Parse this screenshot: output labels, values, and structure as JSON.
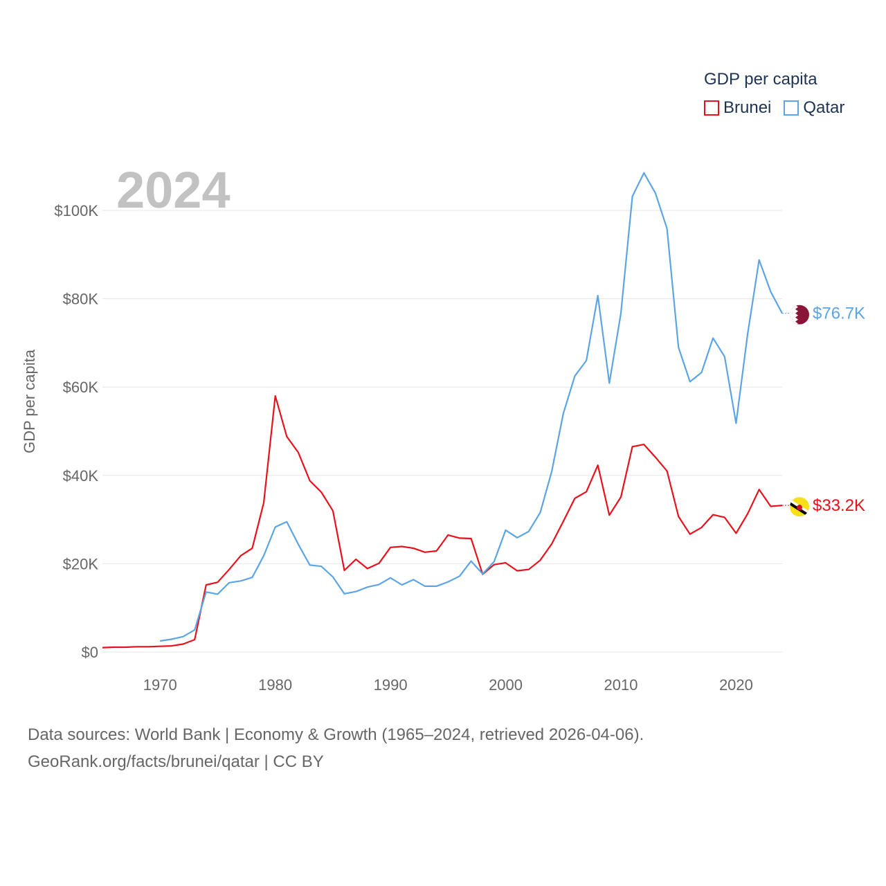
{
  "legend": {
    "title": "GDP per capita",
    "items": [
      {
        "label": "Brunei",
        "color": "#e8111b"
      },
      {
        "label": "Qatar",
        "color": "#5ba4e6"
      }
    ]
  },
  "footer": {
    "line1": "Data sources: World Bank | Economy & Growth (1965–2024, retrieved 2026-04-06).",
    "line2": "GeoRank.org/facts/brunei/qatar | CC BY"
  },
  "chart_data": {
    "type": "line",
    "title": "GDP per capita",
    "year_label": "2024",
    "ylabel": "GDP per capita",
    "xlabel": "",
    "xlim": [
      1965,
      2024
    ],
    "ylim": [
      0,
      100000
    ],
    "x_ticks": [
      1970,
      1980,
      1990,
      2000,
      2010,
      2020
    ],
    "y_ticks": [
      {
        "value": 0,
        "label": "$0"
      },
      {
        "value": 20000,
        "label": "$20K"
      },
      {
        "value": 40000,
        "label": "$40K"
      },
      {
        "value": 60000,
        "label": "$60K"
      },
      {
        "value": 80000,
        "label": "$80K"
      },
      {
        "value": 100000,
        "label": "$100K"
      }
    ],
    "grid": true,
    "series": [
      {
        "name": "Brunei",
        "color": "#e8111b",
        "end_label": "$33.2K",
        "flag": "brunei-flag",
        "x": [
          1965,
          1966,
          1967,
          1968,
          1969,
          1970,
          1971,
          1972,
          1973,
          1974,
          1975,
          1976,
          1977,
          1978,
          1979,
          1980,
          1981,
          1982,
          1983,
          1984,
          1985,
          1986,
          1987,
          1988,
          1989,
          1990,
          1991,
          1992,
          1993,
          1994,
          1995,
          1996,
          1997,
          1998,
          1999,
          2000,
          2001,
          2002,
          2003,
          2004,
          2005,
          2006,
          2007,
          2008,
          2009,
          2010,
          2011,
          2012,
          2013,
          2014,
          2015,
          2016,
          2017,
          2018,
          2019,
          2020,
          2021,
          2022,
          2023,
          2024
        ],
        "values": [
          1000,
          1100,
          1100,
          1200,
          1200,
          1300,
          1400,
          1800,
          2800,
          15200,
          15800,
          18700,
          21800,
          23500,
          33800,
          58000,
          48800,
          45200,
          38800,
          36200,
          32000,
          18500,
          21000,
          18900,
          20100,
          23700,
          23900,
          23500,
          22600,
          22900,
          26500,
          25800,
          25700,
          17600,
          19800,
          20200,
          18400,
          18700,
          20800,
          24500,
          29600,
          34800,
          36300,
          42300,
          31000,
          35100,
          46500,
          47000,
          44100,
          41000,
          30700,
          26700,
          28200,
          31100,
          30500,
          26900,
          31300,
          36800,
          33000,
          33200
        ]
      },
      {
        "name": "Qatar",
        "color": "#5ba4e6",
        "end_label": "$76.7K",
        "flag": "qatar-flag",
        "x": [
          1970,
          1971,
          1972,
          1973,
          1974,
          1975,
          1976,
          1977,
          1978,
          1979,
          1980,
          1981,
          1982,
          1983,
          1984,
          1985,
          1986,
          1987,
          1988,
          1989,
          1990,
          1991,
          1992,
          1993,
          1994,
          1995,
          1996,
          1997,
          1998,
          1999,
          2000,
          2001,
          2002,
          2003,
          2004,
          2005,
          2006,
          2007,
          2008,
          2009,
          2010,
          2011,
          2012,
          2013,
          2014,
          2015,
          2016,
          2017,
          2018,
          2019,
          2020,
          2021,
          2022,
          2023,
          2024
        ],
        "values": [
          2500,
          2900,
          3500,
          5000,
          13600,
          13100,
          15700,
          16100,
          16900,
          21800,
          28300,
          29500,
          24400,
          19700,
          19400,
          17000,
          13200,
          13700,
          14700,
          15300,
          16800,
          15200,
          16400,
          14900,
          14900,
          15900,
          17200,
          20600,
          17700,
          20500,
          27600,
          25900,
          27300,
          31600,
          40900,
          54000,
          62500,
          66000,
          80700,
          60900,
          76700,
          103200,
          108500,
          103900,
          95900,
          69000,
          61200,
          63300,
          71100,
          66900,
          51800,
          72000,
          88800,
          81600,
          76700
        ]
      }
    ]
  }
}
